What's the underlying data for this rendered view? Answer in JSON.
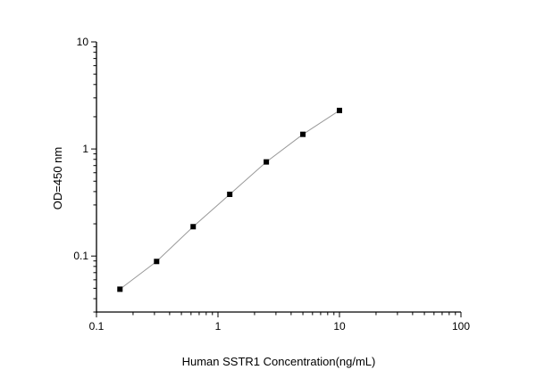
{
  "chart_data": {
    "type": "scatter",
    "title": "",
    "xlabel": "Human SSTR1 Concentration(ng/mL)",
    "ylabel": "OD=450 nm",
    "xscale": "log",
    "yscale": "log",
    "xlim": [
      0.1,
      100
    ],
    "ylim": [
      0.03,
      10
    ],
    "x_ticks": [
      {
        "v": 0.1,
        "label": "0.1"
      },
      {
        "v": 1,
        "label": "1"
      },
      {
        "v": 10,
        "label": "10"
      },
      {
        "v": 100,
        "label": "100"
      }
    ],
    "y_ticks": [
      {
        "v": 0.1,
        "label": "0.1"
      },
      {
        "v": 1,
        "label": "1"
      },
      {
        "v": 10,
        "label": "10"
      }
    ],
    "grid": false,
    "marker": "square",
    "marker_color": "#000000",
    "line_color": "#999999",
    "points": [
      {
        "x": 0.156,
        "y": 0.049
      },
      {
        "x": 0.3125,
        "y": 0.089
      },
      {
        "x": 0.625,
        "y": 0.188
      },
      {
        "x": 1.25,
        "y": 0.377
      },
      {
        "x": 2.5,
        "y": 0.757
      },
      {
        "x": 5,
        "y": 1.37
      },
      {
        "x": 10,
        "y": 2.29
      }
    ]
  }
}
